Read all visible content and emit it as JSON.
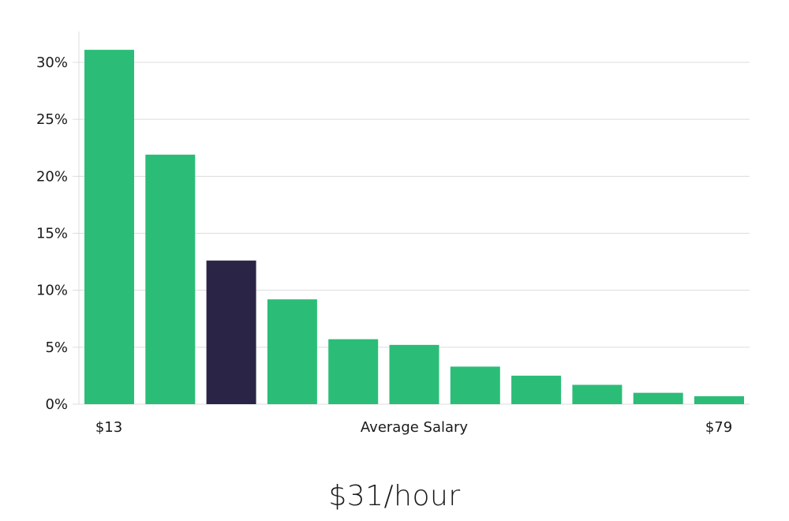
{
  "chart_data": {
    "type": "bar",
    "values": [
      31.1,
      21.9,
      12.6,
      9.2,
      5.7,
      5.2,
      3.3,
      2.5,
      1.7,
      1.0,
      0.7
    ],
    "highlight_index": 2,
    "ylim": [
      0,
      30
    ],
    "yticks": [
      0,
      5,
      10,
      15,
      20,
      25,
      30
    ],
    "ytick_labels": [
      "0%",
      "5%",
      "10%",
      "15%",
      "20%",
      "25%",
      "30%"
    ],
    "x_min_label": "$13",
    "x_max_label": "$79",
    "xlabel": "Average Salary",
    "grid": true,
    "colors": {
      "bar": "#2bbd77",
      "highlight": "#2a2547",
      "grid": "#dcdcdc"
    }
  },
  "headline": "$31/hour"
}
